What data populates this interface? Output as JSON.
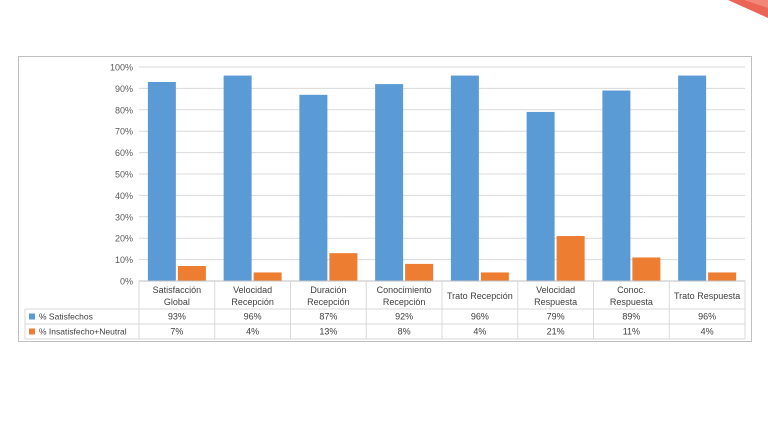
{
  "colors": {
    "satisfied": "#5b9bd5",
    "unsatisfied": "#ed7d31",
    "accent": "#e84a3a"
  },
  "chart_data": {
    "type": "bar",
    "categories": [
      [
        "Satisfacción",
        "Global"
      ],
      [
        "Velocidad",
        "Recepción"
      ],
      [
        "Duración",
        "Recepción"
      ],
      [
        "Conocimiento",
        "Recepción"
      ],
      [
        "Trato Recepción"
      ],
      [
        "Velocidad",
        "Respuesta"
      ],
      [
        "Conoc.",
        "Respuesta"
      ],
      [
        "Trato Respuesta"
      ]
    ],
    "series": [
      {
        "name": "% Satisfechos",
        "values": [
          93,
          96,
          87,
          92,
          96,
          79,
          89,
          96
        ],
        "labels": [
          "93%",
          "96%",
          "87%",
          "92%",
          "96%",
          "79%",
          "89%",
          "96%"
        ]
      },
      {
        "name": "% Insatisfecho+Neutral",
        "values": [
          7,
          4,
          13,
          8,
          4,
          21,
          11,
          4
        ],
        "labels": [
          "7%",
          "4%",
          "13%",
          "8%",
          "4%",
          "21%",
          "11%",
          "4%"
        ]
      }
    ],
    "yticks": [
      "0%",
      "10%",
      "20%",
      "30%",
      "40%",
      "50%",
      "60%",
      "70%",
      "80%",
      "90%",
      "100%"
    ],
    "ylim": [
      0,
      100
    ],
    "grid": true,
    "legend": "data-table"
  }
}
